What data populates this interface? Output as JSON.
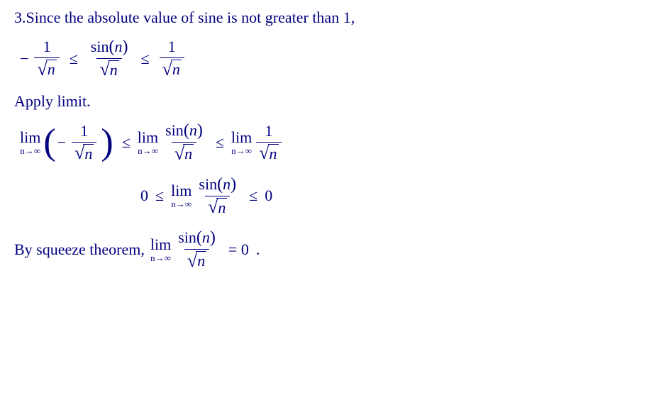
{
  "problem_number": "3.",
  "intro_text": "Since the absolute value of sine is not greater than 1,",
  "apply_text": "Apply limit.",
  "conclusion_prefix": "By squeeze theorem,",
  "sin": "sin",
  "var_n": "n",
  "one": "1",
  "zero": "0",
  "lim_label": "lim",
  "lim_sub": "n→∞",
  "leq": "≤",
  "minus": "−",
  "eq_zero": "= 0",
  "period": "."
}
